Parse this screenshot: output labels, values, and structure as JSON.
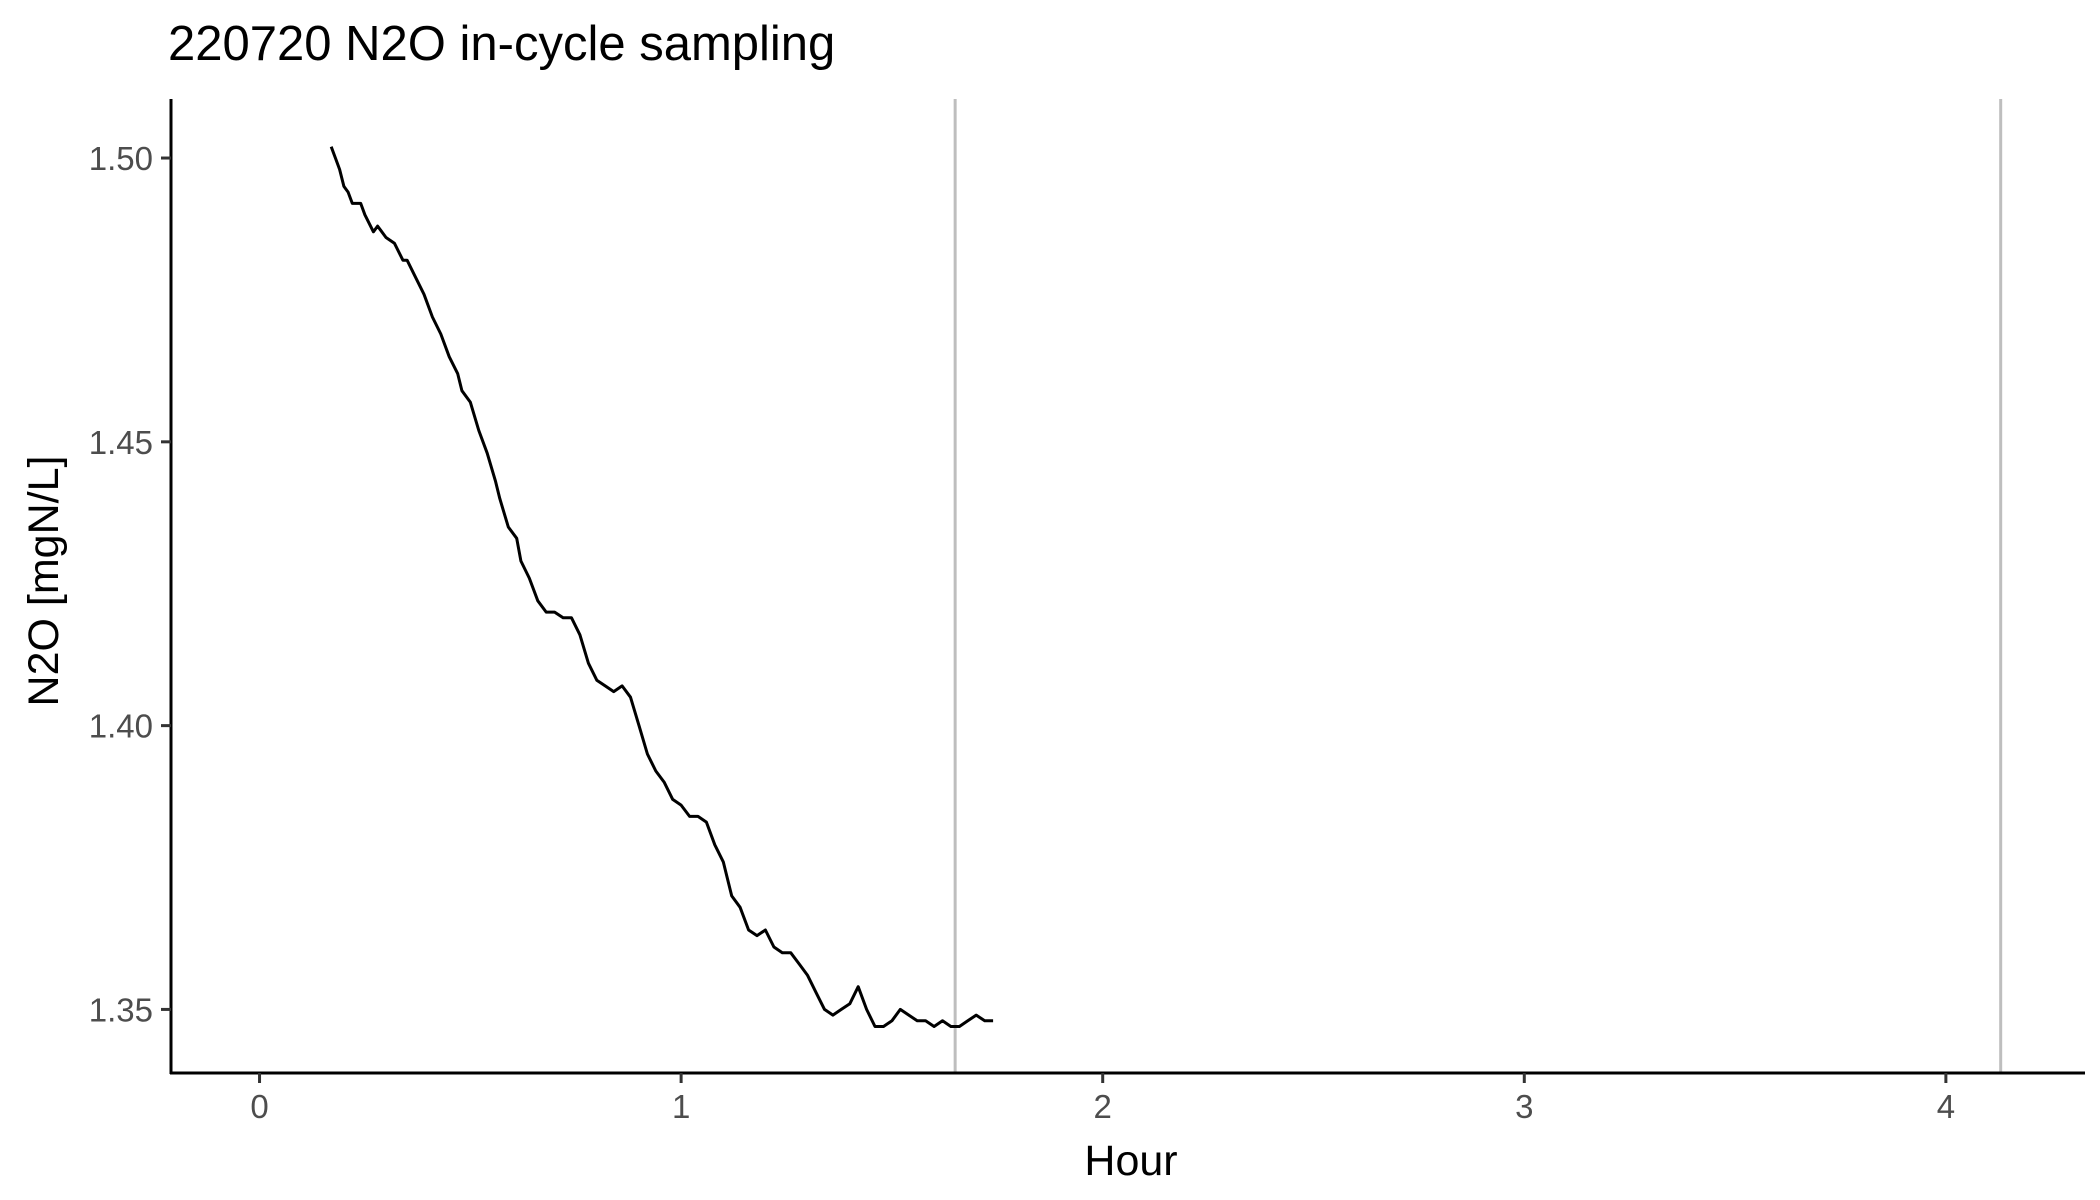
{
  "chart_data": {
    "type": "line",
    "title": "220720 N2O in-cycle sampling",
    "xlabel": "Hour",
    "ylabel": "N2O [mgN/L]",
    "xlim": [
      -0.21,
      4.33
    ],
    "ylim": [
      1.3388,
      1.5104
    ],
    "x_ticks": [
      0,
      1,
      2,
      3,
      4
    ],
    "x_tick_labels": [
      "0",
      "1",
      "2",
      "3",
      "4"
    ],
    "y_ticks": [
      1.35,
      1.4,
      1.45,
      1.5
    ],
    "y_tick_labels": [
      "1.35",
      "1.40",
      "1.45",
      "1.50"
    ],
    "grid": false,
    "legend": "none",
    "vlines": [
      1.65,
      4.13
    ],
    "vline_color": "#bebebe",
    "line_color": "#000000",
    "series": [
      {
        "x": [
          0.17,
          0.18,
          0.19,
          0.2,
          0.21,
          0.22,
          0.24,
          0.25,
          0.27,
          0.28,
          0.3,
          0.32,
          0.34,
          0.35,
          0.37,
          0.39,
          0.41,
          0.43,
          0.45,
          0.47,
          0.48,
          0.5,
          0.52,
          0.54,
          0.56,
          0.57,
          0.59,
          0.61,
          0.62,
          0.64,
          0.66,
          0.68,
          0.7,
          0.72,
          0.74,
          0.76,
          0.78,
          0.8,
          0.82,
          0.84,
          0.86,
          0.88,
          0.9,
          0.92,
          0.94,
          0.96,
          0.98,
          1.0,
          1.02,
          1.04,
          1.06,
          1.08,
          1.1,
          1.12,
          1.14,
          1.16,
          1.18,
          1.2,
          1.22,
          1.24,
          1.26,
          1.28,
          1.3,
          1.32,
          1.34,
          1.36,
          1.38,
          1.4,
          1.42,
          1.44,
          1.46,
          1.48,
          1.5,
          1.52,
          1.54,
          1.56,
          1.58,
          1.6,
          1.62,
          1.64,
          1.66,
          1.68,
          1.7,
          1.72,
          1.74
        ],
        "y": [
          1.502,
          1.5,
          1.498,
          1.495,
          1.494,
          1.492,
          1.492,
          1.49,
          1.487,
          1.488,
          1.486,
          1.485,
          1.482,
          1.482,
          1.479,
          1.476,
          1.472,
          1.469,
          1.465,
          1.462,
          1.459,
          1.457,
          1.452,
          1.448,
          1.443,
          1.44,
          1.435,
          1.433,
          1.429,
          1.426,
          1.422,
          1.42,
          1.42,
          1.419,
          1.419,
          1.416,
          1.411,
          1.408,
          1.407,
          1.406,
          1.407,
          1.405,
          1.4,
          1.395,
          1.392,
          1.39,
          1.387,
          1.386,
          1.384,
          1.384,
          1.383,
          1.379,
          1.376,
          1.37,
          1.368,
          1.364,
          1.363,
          1.364,
          1.361,
          1.36,
          1.36,
          1.358,
          1.356,
          1.353,
          1.35,
          1.349,
          1.35,
          1.351,
          1.354,
          1.35,
          1.347,
          1.347,
          1.348,
          1.35,
          1.349,
          1.348,
          1.348,
          1.347,
          1.348,
          1.347,
          1.347,
          1.348,
          1.349,
          1.348,
          1.348
        ]
      }
    ]
  }
}
